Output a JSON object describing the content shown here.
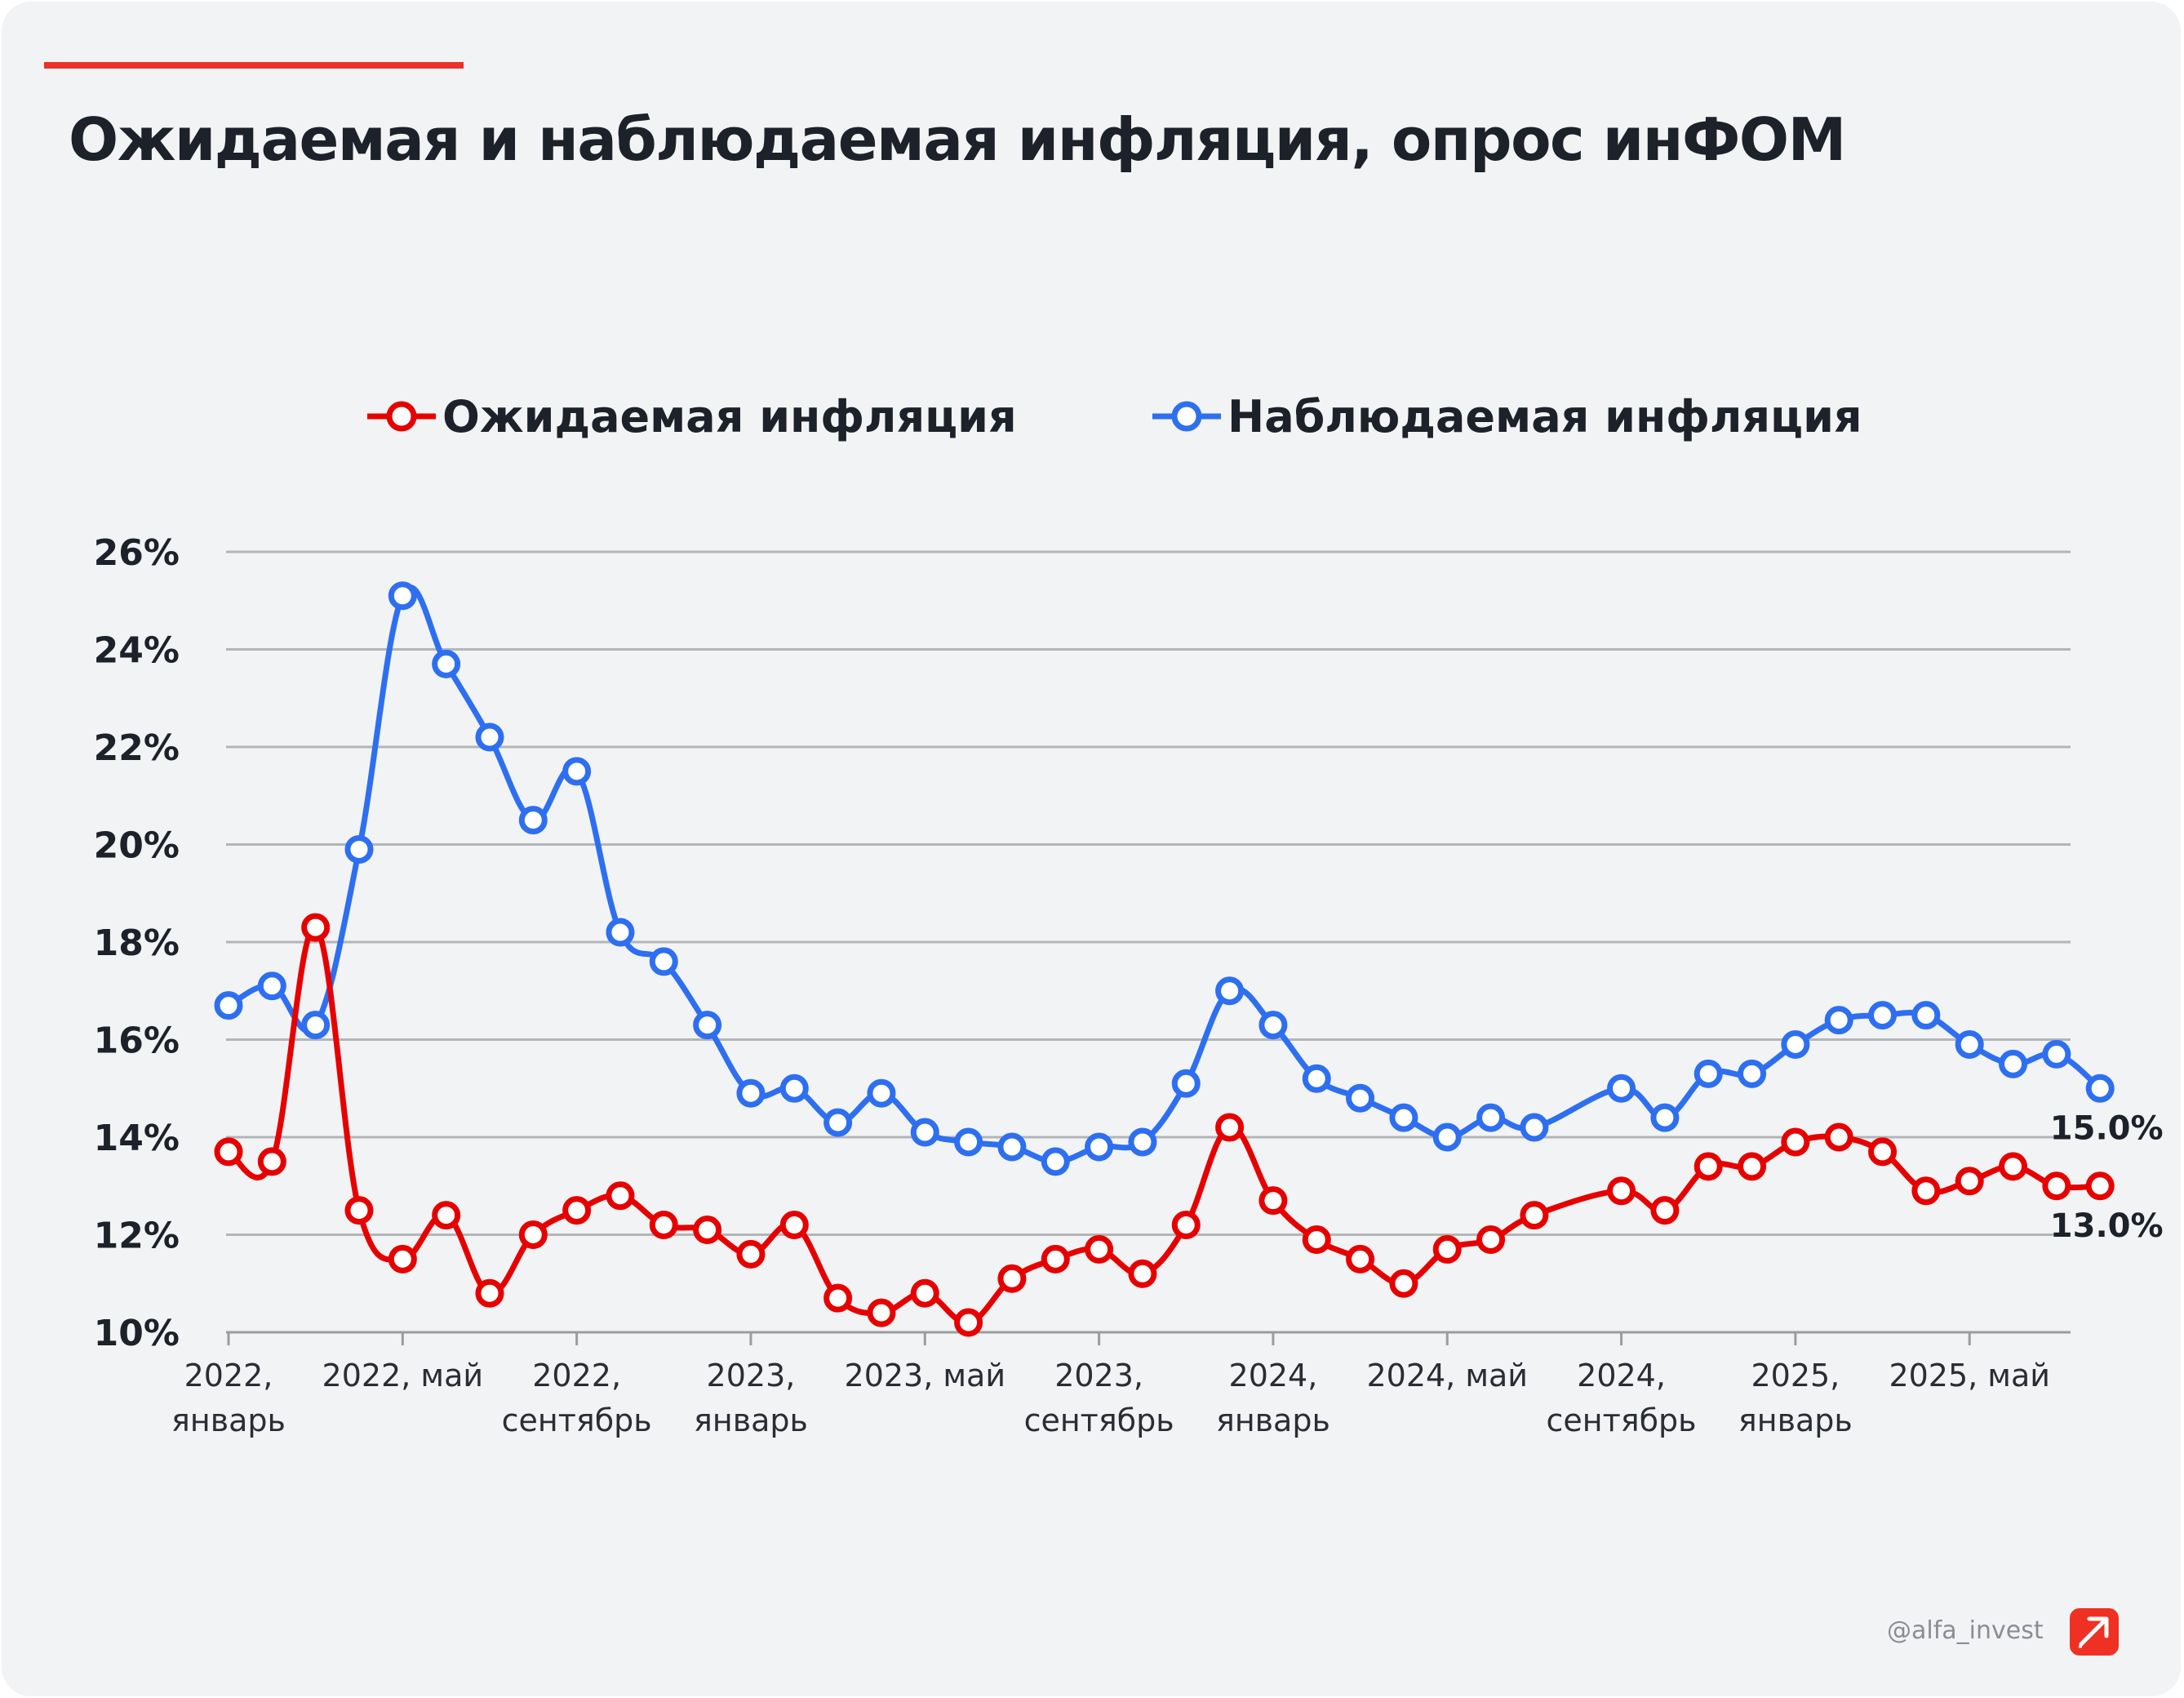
{
  "title": "Ожидаемая и наблюдаемая инфляция, опрос инФОМ",
  "footer": {
    "handle": "@alfa_invest",
    "logo_icon": "alfa-logo-arrow-icon"
  },
  "colors": {
    "accent": "#e8322a",
    "expected": "#e60000",
    "observed": "#2d6ff0",
    "grid": "#b3b5b8",
    "text": "#1d2129"
  },
  "chart_data": {
    "type": "line",
    "title": "Ожидаемая и наблюдаемая инфляция, опрос инФОМ",
    "xlabel": "",
    "ylabel": "",
    "ylim": [
      10,
      26
    ],
    "grid": true,
    "legend_position": "top",
    "y_ticks": [
      "10%",
      "12%",
      "14%",
      "16%",
      "18%",
      "20%",
      "22%",
      "24%",
      "26%"
    ],
    "x_tick_labels": [
      {
        "x": "2022-01",
        "lines": [
          "2022,",
          "январь"
        ]
      },
      {
        "x": "2022-05",
        "lines": [
          "2022, май"
        ]
      },
      {
        "x": "2022-09",
        "lines": [
          "2022,",
          "сентябрь"
        ]
      },
      {
        "x": "2023-01",
        "lines": [
          "2023,",
          "январь"
        ]
      },
      {
        "x": "2023-05",
        "lines": [
          "2023, май"
        ]
      },
      {
        "x": "2023-09",
        "lines": [
          "2023,",
          "сентябрь"
        ]
      },
      {
        "x": "2024-01",
        "lines": [
          "2024,",
          "январь"
        ]
      },
      {
        "x": "2024-05",
        "lines": [
          "2024, май"
        ]
      },
      {
        "x": "2024-09",
        "lines": [
          "2024,",
          "сентябрь"
        ]
      },
      {
        "x": "2025-01",
        "lines": [
          "2025,",
          "январь"
        ]
      },
      {
        "x": "2025-05",
        "lines": [
          "2025, май"
        ]
      }
    ],
    "series": [
      {
        "name": "Ожидаемая инфляция",
        "color": "#e60000",
        "end_label": "13.0%",
        "points": [
          [
            "2022-01",
            13.7
          ],
          [
            "2022-02",
            13.5
          ],
          [
            "2022-03",
            18.3
          ],
          [
            "2022-04",
            12.5
          ],
          [
            "2022-05",
            11.5
          ],
          [
            "2022-06",
            12.4
          ],
          [
            "2022-07",
            10.8
          ],
          [
            "2022-08",
            12.0
          ],
          [
            "2022-09",
            12.5
          ],
          [
            "2022-10",
            12.8
          ],
          [
            "2022-11",
            12.2
          ],
          [
            "2022-12",
            12.1
          ],
          [
            "2023-01",
            11.6
          ],
          [
            "2023-02",
            12.2
          ],
          [
            "2023-03",
            10.7
          ],
          [
            "2023-04",
            10.4
          ],
          [
            "2023-05",
            10.8
          ],
          [
            "2023-06",
            10.2
          ],
          [
            "2023-07",
            11.1
          ],
          [
            "2023-08",
            11.5
          ],
          [
            "2023-09",
            11.7
          ],
          [
            "2023-10",
            11.2
          ],
          [
            "2023-11",
            12.2
          ],
          [
            "2023-12",
            14.2
          ],
          [
            "2024-01",
            12.7
          ],
          [
            "2024-02",
            11.9
          ],
          [
            "2024-03",
            11.5
          ],
          [
            "2024-04",
            11.0
          ],
          [
            "2024-05",
            11.7
          ],
          [
            "2024-06",
            11.9
          ],
          [
            "2024-07",
            12.4
          ],
          [
            "2024-09",
            12.9
          ],
          [
            "2024-10",
            12.5
          ],
          [
            "2024-11",
            13.4
          ],
          [
            "2024-12",
            13.4
          ],
          [
            "2025-01",
            13.9
          ],
          [
            "2025-02",
            14.0
          ],
          [
            "2025-03",
            13.7
          ],
          [
            "2025-04",
            12.9
          ],
          [
            "2025-05",
            13.1
          ],
          [
            "2025-06",
            13.4
          ],
          [
            "2025-07",
            13.0
          ],
          [
            "2025-08",
            13.0
          ]
        ]
      },
      {
        "name": "Наблюдаемая инфляция",
        "color": "#2d6ff0",
        "end_label": "15.0%",
        "points": [
          [
            "2022-01",
            16.7
          ],
          [
            "2022-02",
            17.1
          ],
          [
            "2022-03",
            16.3
          ],
          [
            "2022-04",
            19.9
          ],
          [
            "2022-05",
            25.1
          ],
          [
            "2022-06",
            23.7
          ],
          [
            "2022-07",
            22.2
          ],
          [
            "2022-08",
            20.5
          ],
          [
            "2022-09",
            21.5
          ],
          [
            "2022-10",
            18.2
          ],
          [
            "2022-11",
            17.6
          ],
          [
            "2022-12",
            16.3
          ],
          [
            "2023-01",
            14.9
          ],
          [
            "2023-02",
            15.0
          ],
          [
            "2023-03",
            14.3
          ],
          [
            "2023-04",
            14.9
          ],
          [
            "2023-05",
            14.1
          ],
          [
            "2023-06",
            13.9
          ],
          [
            "2023-07",
            13.8
          ],
          [
            "2023-08",
            13.5
          ],
          [
            "2023-09",
            13.8
          ],
          [
            "2023-10",
            13.9
          ],
          [
            "2023-11",
            15.1
          ],
          [
            "2023-12",
            17.0
          ],
          [
            "2024-01",
            16.3
          ],
          [
            "2024-02",
            15.2
          ],
          [
            "2024-03",
            14.8
          ],
          [
            "2024-04",
            14.4
          ],
          [
            "2024-05",
            14.0
          ],
          [
            "2024-06",
            14.4
          ],
          [
            "2024-07",
            14.2
          ],
          [
            "2024-09",
            15.0
          ],
          [
            "2024-10",
            14.4
          ],
          [
            "2024-11",
            15.3
          ],
          [
            "2024-12",
            15.3
          ],
          [
            "2025-01",
            15.9
          ],
          [
            "2025-02",
            16.4
          ],
          [
            "2025-03",
            16.5
          ],
          [
            "2025-04",
            16.5
          ],
          [
            "2025-05",
            15.9
          ],
          [
            "2025-06",
            15.5
          ],
          [
            "2025-07",
            15.7
          ],
          [
            "2025-08",
            15.0
          ]
        ]
      }
    ]
  }
}
